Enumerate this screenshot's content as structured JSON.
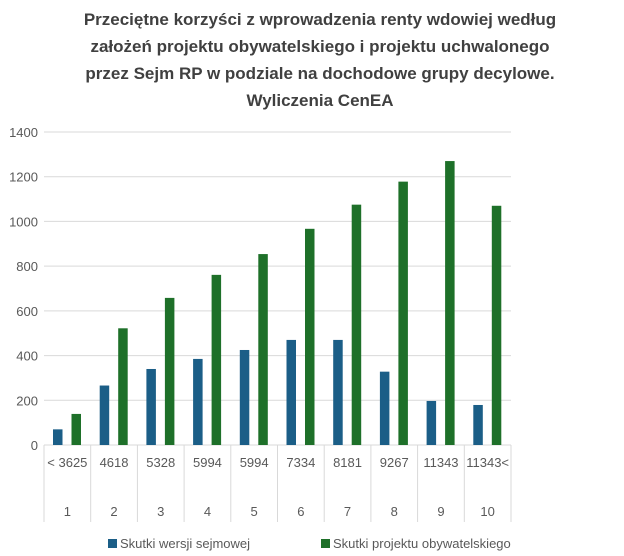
{
  "chart_data": {
    "type": "bar",
    "title": "Przeciętne korzyści z wprowadzenia renty wdowiej według założeń projektu obywatelskiego i projektu uchwalonego przez Sejm RP w podziale na dochodowe grupy decylowe. Wyliczenia CenEA",
    "title_lines": [
      "Przeciętne korzyści z wprowadzenia renty wdowiej według",
      "założeń projektu obywatelskiego i projektu uchwalonego",
      "przez Sejm RP w podziale na dochodowe grupy decylowe.",
      "Wyliczenia CenEA"
    ],
    "categories": [
      "1",
      "2",
      "3",
      "4",
      "5",
      "6",
      "7",
      "8",
      "9",
      "10"
    ],
    "income_labels": [
      "< 3625",
      "4618",
      "5328",
      "5994",
      "5994",
      "7334",
      "8181",
      "9267",
      "11343",
      "11343<"
    ],
    "series": [
      {
        "name": "Skutki wersji sejmowej",
        "color": "#1b5e87",
        "values": [
          70,
          266,
          340,
          385,
          425,
          470,
          470,
          328,
          197,
          179
        ]
      },
      {
        "name": "Skutki projektu obywatelskiego",
        "color": "#1e7029",
        "values": [
          139,
          522,
          658,
          761,
          854,
          967,
          1075,
          1178,
          1270,
          1070
        ]
      }
    ],
    "ylim": [
      0,
      1400
    ],
    "yticks": [
      0,
      200,
      400,
      600,
      800,
      1000,
      1200,
      1400
    ],
    "xlabel": "",
    "ylabel": "",
    "grid": true,
    "legend_position": "bottom"
  }
}
